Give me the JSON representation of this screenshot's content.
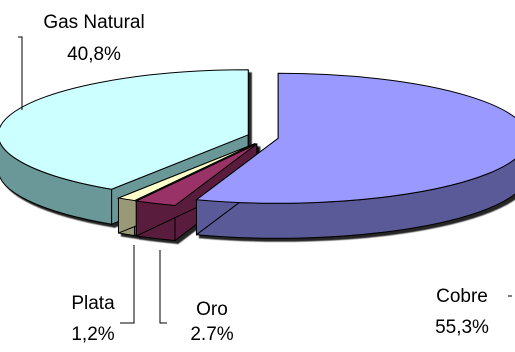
{
  "chart_data": {
    "type": "pie",
    "subtype": "3d-exploded",
    "title": "",
    "legend": "none",
    "slices": [
      {
        "name": "Cobre",
        "label": "55,3%",
        "value": 55.3,
        "color": "#9999ff",
        "side_color": "#5a5a99"
      },
      {
        "name": "Oro",
        "label": "2.7%",
        "value": 2.7,
        "color": "#993366",
        "side_color": "#5a1e3c"
      },
      {
        "name": "Plata",
        "label": "1,2%",
        "value": 1.2,
        "color": "#ffffcc",
        "side_color": "#999977"
      },
      {
        "name": "Gas Natural",
        "label": "40,8%",
        "value": 40.8,
        "color": "#ccffff",
        "side_color": "#6a9898"
      }
    ]
  }
}
